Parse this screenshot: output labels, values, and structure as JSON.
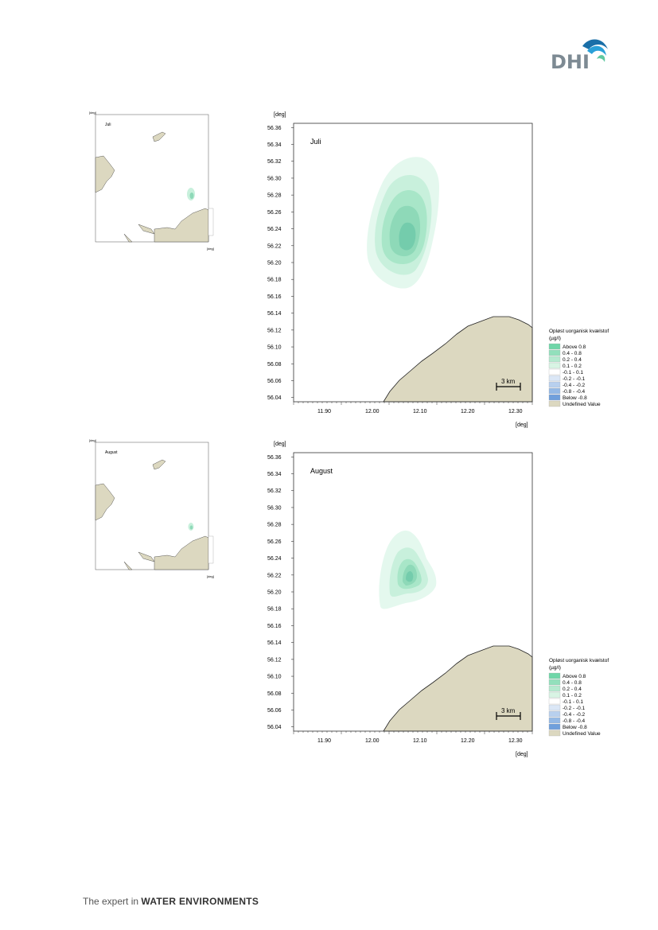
{
  "brand": {
    "logo_text": "DHI",
    "tagline_prefix": "The expert in ",
    "tagline_strong": "WATER ENVIRONMENTS"
  },
  "colors": {
    "land": "#dcd8c0",
    "plume_1": "#e4f8ee",
    "plume_2": "#c8f0dc",
    "plume_3": "#a8e6c8",
    "plume_4": "#8ed9b8",
    "plume_5": "#74ccac"
  },
  "maps": [
    {
      "month": "Juli",
      "unit": "[deg]",
      "x_ticks": [
        "11.90",
        "12.00",
        "12.10",
        "12.20",
        "12.30"
      ],
      "y_ticks": [
        "56.36",
        "56.34",
        "56.32",
        "56.30",
        "56.28",
        "56.26",
        "56.24",
        "56.22",
        "56.20",
        "56.18",
        "56.16",
        "56.14",
        "56.12",
        "56.10",
        "56.08",
        "56.06",
        "56.04"
      ],
      "scale_label": "3 km",
      "legend": {
        "title": "Opløst uorganisk kvælstof",
        "unit": "(µg/l)",
        "items": [
          {
            "label": "Above  0.8",
            "color": "#6fd6a8"
          },
          {
            "label": "0.4 -  0.8",
            "color": "#92e0bc"
          },
          {
            "label": "0.2 -  0.4",
            "color": "#b5ead0"
          },
          {
            "label": "0.1 -  0.2",
            "color": "#d8f4e4"
          },
          {
            "label": "-0.1 -  0.1",
            "color": "#ffffff"
          },
          {
            "label": "-0.2 - -0.1",
            "color": "#dbe7f6"
          },
          {
            "label": "-0.4 - -0.2",
            "color": "#b8d0ee"
          },
          {
            "label": "-0.8 - -0.4",
            "color": "#94b9e6"
          },
          {
            "label": "Below -0.8",
            "color": "#6f9fdc"
          },
          {
            "label": "Undefined Value",
            "color": "#dcd8c0"
          }
        ]
      }
    },
    {
      "month": "August",
      "unit": "[deg]",
      "x_ticks": [
        "11.90",
        "12.00",
        "12.10",
        "12.20",
        "12.30"
      ],
      "y_ticks": [
        "56.36",
        "56.34",
        "56.32",
        "56.30",
        "56.28",
        "56.26",
        "56.24",
        "56.22",
        "56.20",
        "56.18",
        "56.16",
        "56.14",
        "56.12",
        "56.10",
        "56.08",
        "56.06",
        "56.04"
      ],
      "scale_label": "3 km",
      "legend": {
        "title": "Opløst uorganisk kvælstof",
        "unit": "(µg/l)",
        "items": [
          {
            "label": "Above  0.8",
            "color": "#6fd6a8"
          },
          {
            "label": "0.4 -  0.8",
            "color": "#92e0bc"
          },
          {
            "label": "0.2 -  0.4",
            "color": "#b5ead0"
          },
          {
            "label": "0.1 -  0.2",
            "color": "#d8f4e4"
          },
          {
            "label": "-0.1 -  0.1",
            "color": "#ffffff"
          },
          {
            "label": "-0.2 - -0.1",
            "color": "#dbe7f6"
          },
          {
            "label": "-0.4 - -0.2",
            "color": "#b8d0ee"
          },
          {
            "label": "-0.8 - -0.4",
            "color": "#94b9e6"
          },
          {
            "label": "Below -0.8",
            "color": "#6f9fdc"
          },
          {
            "label": "Undefined Value",
            "color": "#dcd8c0"
          }
        ]
      }
    }
  ]
}
